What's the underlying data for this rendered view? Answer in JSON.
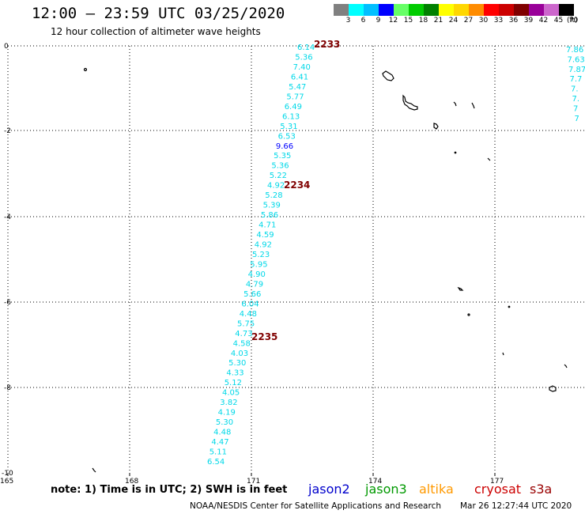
{
  "title": "12:00 – 23:59 UTC 03/25/2020",
  "subtitle": "12 hour collection of altimeter wave heights",
  "legend": {
    "labels": [
      "3",
      "6",
      "9",
      "12",
      "15",
      "18",
      "21",
      "24",
      "27",
      "30",
      "33",
      "36",
      "39",
      "42",
      "45",
      "70"
    ],
    "colors": [
      "#808080",
      "#00ffff",
      "#00bfff",
      "#0000ff",
      "#66ff66",
      "#00cc00",
      "#008000",
      "#ffff00",
      "#ffd700",
      "#ff8c00",
      "#ff0000",
      "#cc0000",
      "#800000",
      "#990099",
      "#cc66cc",
      "#000000"
    ],
    "unit": "(ft)"
  },
  "axes": {
    "x_ticks": [
      "165",
      "168",
      "171",
      "174",
      "177"
    ],
    "y_ticks": [
      "0",
      "-2",
      "-4",
      "-6",
      "-8",
      "-10"
    ]
  },
  "track": {
    "color": "#00d8e8",
    "highlight_color": "#0000ff",
    "values": [
      "6.14",
      "5.36",
      "7.40",
      "6.41",
      "5.47",
      "5.77",
      "6.49",
      "6.13",
      "5.31",
      "6.53",
      "9.66",
      "5.35",
      "5.36",
      "5.22",
      "4.92",
      "5.28",
      "5.39",
      "5.86",
      "4.71",
      "4.59",
      "4.92",
      "5.23",
      "5.95",
      "4.90",
      "4.79",
      "5.66",
      "6.04",
      "4.48",
      "5.75",
      "4.73",
      "4.58",
      "4.03",
      "5.30",
      "4.33",
      "5.12",
      "4.05",
      "3.82",
      "4.19",
      "5.30",
      "4.48",
      "4.47",
      "5.11",
      "6.54"
    ],
    "highlight_index": 10
  },
  "right_track": {
    "values": [
      "7.86",
      "7.63",
      "7.87",
      "7.7",
      "7.",
      "7.",
      "7",
      "7"
    ]
  },
  "time_labels": [
    {
      "text": "2233",
      "color": "#800000"
    },
    {
      "text": "2234",
      "color": "#800000"
    },
    {
      "text": "2235",
      "color": "#800000"
    }
  ],
  "note": "note: 1) Time is in UTC; 2) SWH is in feet",
  "satellites": [
    {
      "name": "jason2",
      "color": "#0000cc"
    },
    {
      "name": "jason3",
      "color": "#009900"
    },
    {
      "name": "altika",
      "color": "#ff9900"
    },
    {
      "name": "cryosat",
      "color": "#cc0000"
    },
    {
      "name": "s3a",
      "color": "#990000"
    }
  ],
  "credit": "NOAA/NESDIS Center for Satellite Applications and Research",
  "timestamp": "Mar 26 12:27:44 UTC 2020"
}
